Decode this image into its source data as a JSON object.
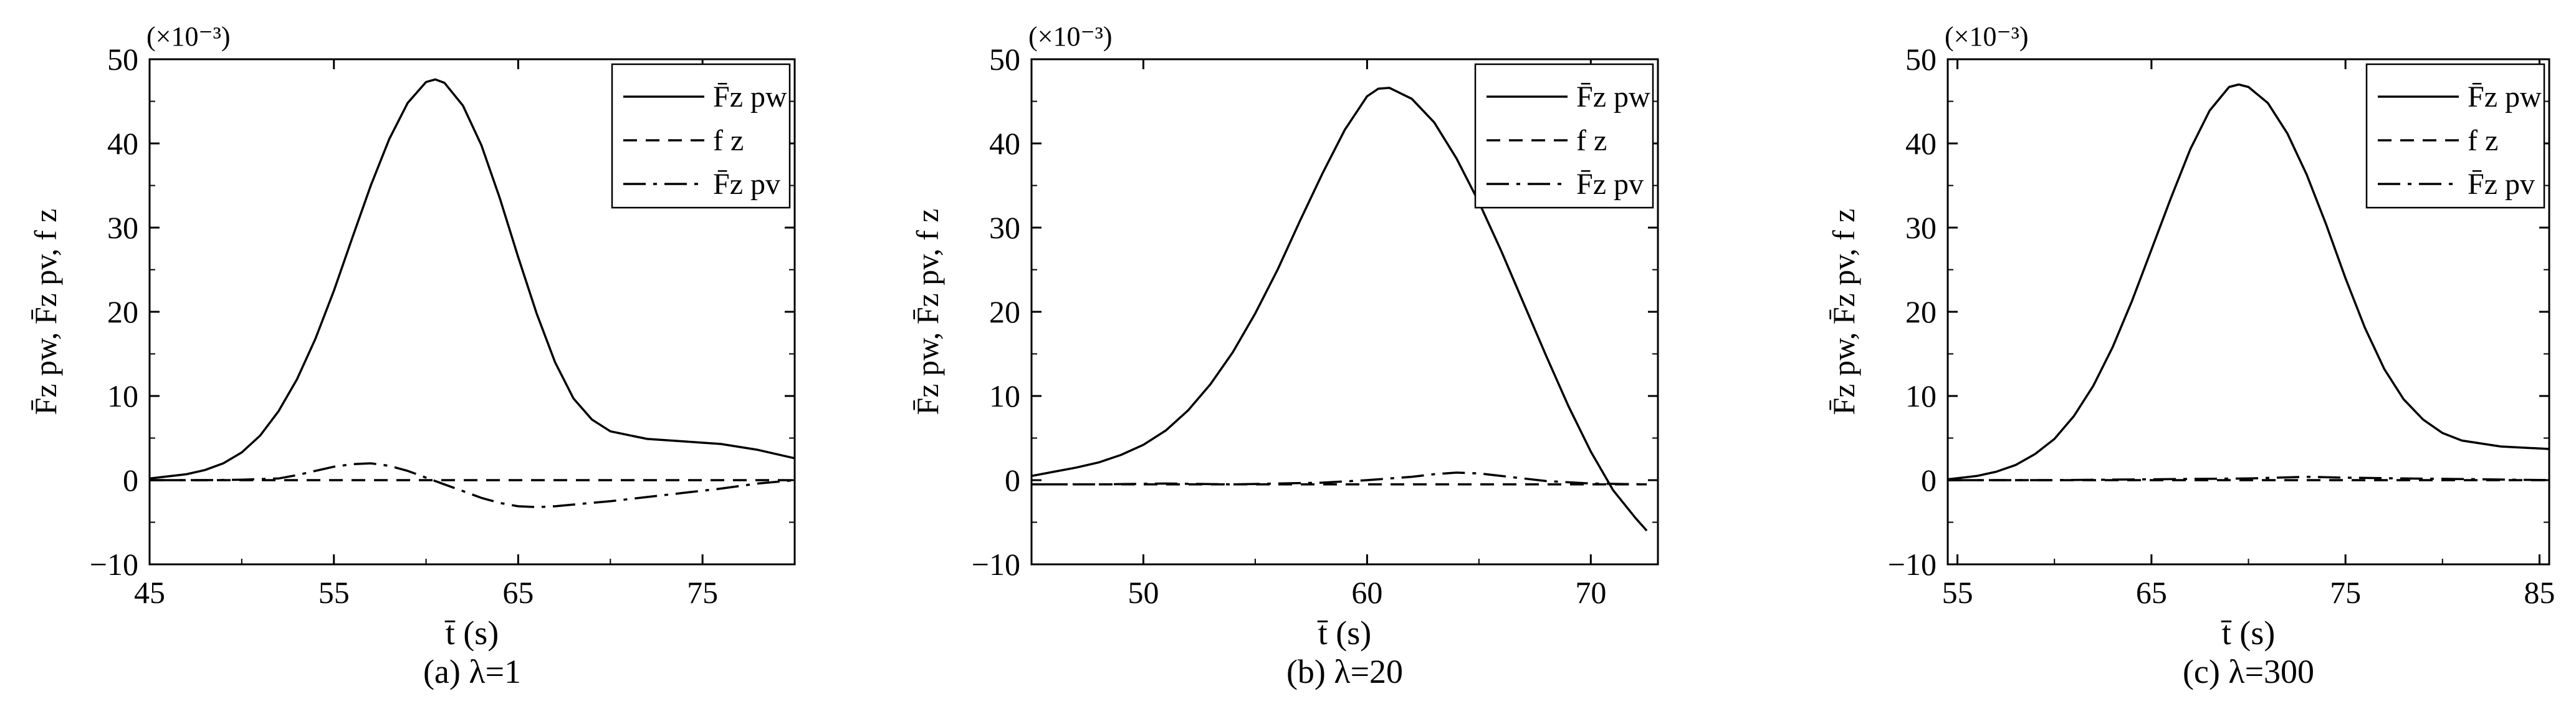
{
  "figure": {
    "multiplier_label": "(×10⁻³)",
    "legend_labels": [
      "F̄z pw",
      "f z",
      "F̄z pv"
    ],
    "ylabel": "F̄z pw, F̄z pv, f z",
    "xlabel": "t̄ (s)"
  },
  "chart_data": [
    {
      "type": "line",
      "caption": "(a) λ=1",
      "xlabel": "t̄ (s)",
      "ylabel": "F̄z pw, F̄z pv, f z",
      "y_multiplier": "(×10⁻³)",
      "xlim": [
        45,
        80
      ],
      "ylim": [
        -10,
        50
      ],
      "xticks": [
        45,
        55,
        65,
        75
      ],
      "yticks": [
        -10,
        0,
        10,
        20,
        30,
        40,
        50
      ],
      "legend_position": "top-right",
      "series": [
        {
          "name": "F̄z pw",
          "style": "solid",
          "x": [
            45,
            47,
            48,
            49,
            50,
            51,
            52,
            53,
            54,
            55,
            56,
            57,
            58,
            59,
            60,
            60.5,
            61,
            62,
            63,
            64,
            65,
            66,
            67,
            68,
            69,
            70,
            72,
            74,
            76,
            78,
            80
          ],
          "y": [
            0.2,
            0.7,
            1.2,
            2.0,
            3.3,
            5.3,
            8.2,
            12.0,
            16.8,
            22.5,
            28.8,
            35.0,
            40.5,
            44.8,
            47.3,
            47.6,
            47.2,
            44.5,
            39.8,
            33.5,
            26.5,
            19.8,
            14.0,
            9.7,
            7.2,
            5.8,
            4.9,
            4.6,
            4.3,
            3.6,
            2.6
          ]
        },
        {
          "name": "f z",
          "style": "dashed",
          "x": [
            45,
            80
          ],
          "y": [
            0,
            0
          ]
        },
        {
          "name": "F̄z pv",
          "style": "dashdot",
          "x": [
            45,
            48,
            50,
            52,
            53,
            54,
            55,
            56,
            57,
            58,
            59,
            60,
            61,
            62,
            63,
            64,
            65,
            66,
            67,
            68,
            70,
            72,
            74,
            76,
            78,
            80
          ],
          "y": [
            0,
            0,
            0.05,
            0.2,
            0.6,
            1.1,
            1.6,
            1.9,
            2.0,
            1.7,
            1.1,
            0.3,
            -0.5,
            -1.3,
            -2.1,
            -2.7,
            -3.1,
            -3.2,
            -3.1,
            -2.9,
            -2.5,
            -2.0,
            -1.5,
            -1.0,
            -0.4,
            0
          ]
        }
      ]
    },
    {
      "type": "line",
      "caption": "(b) λ=20",
      "xlabel": "t̄ (s)",
      "ylabel": "F̄z pw, F̄z pv, f z",
      "y_multiplier": "(×10⁻³)",
      "xlim": [
        45,
        73
      ],
      "ylim": [
        -10,
        50
      ],
      "xticks": [
        50,
        60,
        70
      ],
      "yticks": [
        -10,
        0,
        10,
        20,
        30,
        40,
        50
      ],
      "legend_position": "top-right",
      "series": [
        {
          "name": "F̄z pw",
          "style": "solid",
          "x": [
            45,
            46,
            47,
            48,
            49,
            50,
            51,
            52,
            53,
            54,
            55,
            56,
            57,
            58,
            59,
            60,
            60.5,
            61,
            62,
            63,
            64,
            65,
            66,
            67,
            68,
            69,
            70,
            71,
            72,
            72.5
          ],
          "y": [
            0.5,
            1.0,
            1.5,
            2.1,
            3.0,
            4.2,
            5.9,
            8.3,
            11.4,
            15.2,
            19.8,
            25.0,
            30.8,
            36.4,
            41.6,
            45.6,
            46.5,
            46.6,
            45.3,
            42.5,
            38.2,
            33.0,
            27.2,
            21.0,
            14.8,
            8.8,
            3.4,
            -1.2,
            -4.5,
            -6.0
          ]
        },
        {
          "name": "f z",
          "style": "dashed",
          "x": [
            45,
            72.5
          ],
          "y": [
            -0.5,
            -0.5
          ]
        },
        {
          "name": "F̄z pv",
          "style": "dashdot",
          "x": [
            45,
            48,
            51,
            54,
            56,
            58,
            60,
            62,
            63,
            64,
            65,
            66,
            67,
            68,
            70,
            72.5
          ],
          "y": [
            -0.5,
            -0.5,
            -0.4,
            -0.5,
            -0.4,
            -0.3,
            0,
            0.4,
            0.7,
            0.9,
            0.8,
            0.5,
            0.2,
            -0.1,
            -0.4,
            -0.5
          ]
        }
      ]
    },
    {
      "type": "line",
      "caption": "(c) λ=300",
      "xlabel": "t̄ (s)",
      "ylabel": "F̄z pw, F̄z pv, f z",
      "y_multiplier": "(×10⁻³)",
      "xlim": [
        54.5,
        85.5
      ],
      "ylim": [
        -10,
        50
      ],
      "xticks": [
        55,
        65,
        75,
        85
      ],
      "yticks": [
        -10,
        0,
        10,
        20,
        30,
        40,
        50
      ],
      "legend_position": "top-right",
      "series": [
        {
          "name": "F̄z pw",
          "style": "solid",
          "x": [
            54.5,
            56,
            57,
            58,
            59,
            60,
            61,
            62,
            63,
            64,
            65,
            66,
            67,
            68,
            69,
            69.5,
            70,
            71,
            72,
            73,
            74,
            75,
            76,
            77,
            78,
            79,
            80,
            81,
            83,
            85.5
          ],
          "y": [
            0.1,
            0.5,
            1.0,
            1.8,
            3.1,
            4.9,
            7.6,
            11.2,
            15.8,
            21.3,
            27.4,
            33.5,
            39.3,
            43.9,
            46.7,
            47.0,
            46.7,
            44.8,
            41.2,
            36.3,
            30.4,
            24.0,
            18.1,
            13.2,
            9.6,
            7.2,
            5.6,
            4.7,
            4.0,
            3.7
          ]
        },
        {
          "name": "f z",
          "style": "dashed",
          "x": [
            54.5,
            85.5
          ],
          "y": [
            0,
            0
          ]
        },
        {
          "name": "F̄z pv",
          "style": "dashdot",
          "x": [
            54.5,
            60,
            65,
            70,
            73,
            75,
            78,
            82,
            85.5
          ],
          "y": [
            0,
            0,
            0.1,
            0.2,
            0.4,
            0.3,
            0.2,
            0.1,
            0
          ]
        }
      ]
    }
  ]
}
